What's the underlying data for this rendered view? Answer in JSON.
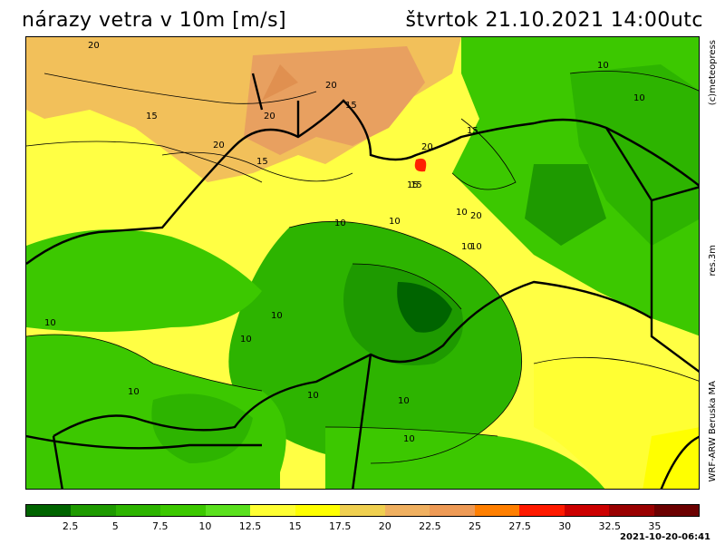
{
  "header": {
    "title": "nárazy vetra v 10m [m/s]",
    "datetime": "štvrtok 21.10.2021 14:00utc"
  },
  "side_labels": {
    "copyright": "(c)meteopress",
    "resolution": "res.3m",
    "model": "WRF-ARW Beruska MA"
  },
  "contour_labels": [
    "20",
    "20",
    "20",
    "15",
    "20",
    "15",
    "15",
    "20",
    "10",
    "10",
    "15",
    "20",
    "15",
    "15",
    "10",
    "10",
    "10",
    "10",
    "10",
    "10",
    "10",
    "10",
    "10",
    "10",
    "10",
    "10"
  ],
  "legend": {
    "colors": [
      "#006400",
      "#1e9a00",
      "#2db400",
      "#3cc800",
      "#5ae01e",
      "#ffff33",
      "#ffff00",
      "#f0d050",
      "#f0b060",
      "#ee9a55",
      "#ff7f00",
      "#ff1a00",
      "#cc0000",
      "#990000",
      "#6b0000"
    ],
    "ticks": [
      "2.5",
      "5",
      "7.5",
      "10",
      "12.5",
      "15",
      "17.5",
      "20",
      "22.5",
      "25",
      "27.5",
      "30",
      "32.5",
      "35"
    ]
  },
  "footer": {
    "timestamp": "2021-10-20-06:41"
  }
}
